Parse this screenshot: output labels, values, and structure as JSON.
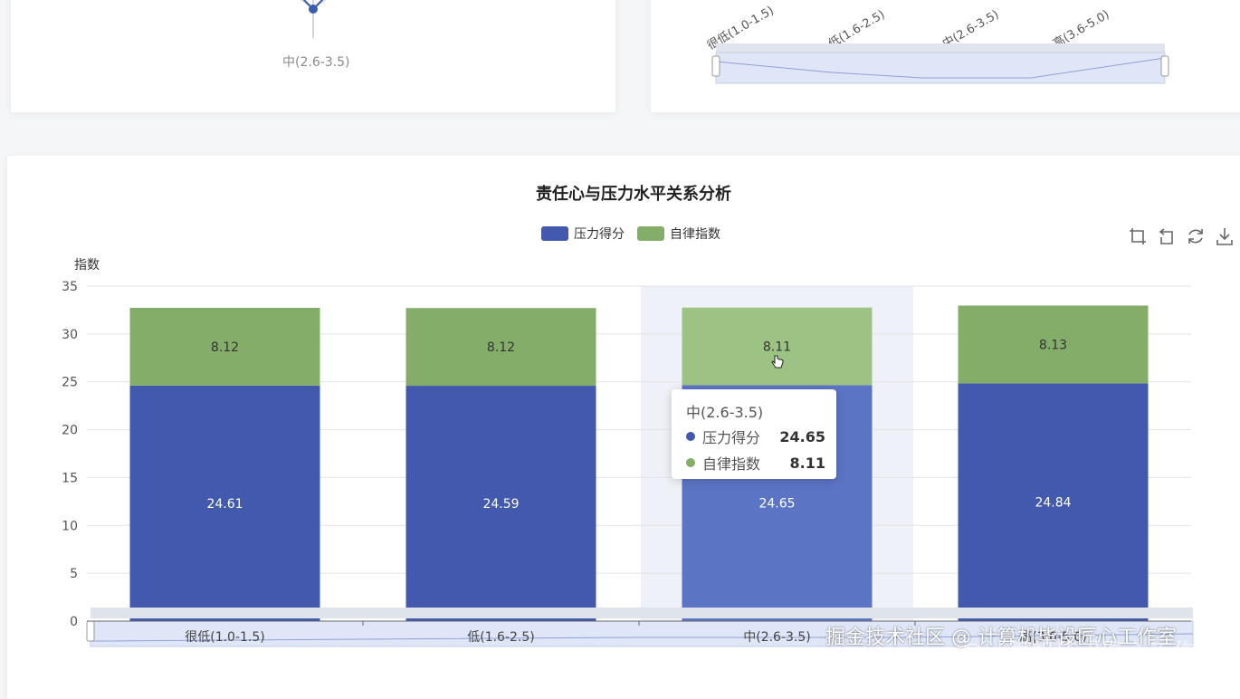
{
  "radar_card": {
    "axis_label": "中(2.6-3.5)"
  },
  "top_right_card": {
    "x_labels": [
      "很低(1.0-1.5)",
      "低(1.6-2.5)",
      "中(2.6-3.5)",
      "高(3.6-5.0)"
    ],
    "datazoom_handle_label": "≡"
  },
  "chart_data": {
    "type": "bar",
    "title": "责任心与压力水平关系分析",
    "ylabel": "指数",
    "xlabel": "",
    "ylim": [
      0,
      35
    ],
    "yticks": [
      0,
      5,
      10,
      15,
      20,
      25,
      30,
      35
    ],
    "stacked": true,
    "categories": [
      "很低(1.0-1.5)",
      "低(1.6-2.5)",
      "中(2.6-3.5)",
      "高(3.6-5.0)"
    ],
    "series": [
      {
        "name": "压力得分",
        "color": "#4259ad",
        "values": [
          24.61,
          24.59,
          24.65,
          24.84
        ]
      },
      {
        "name": "自律指数",
        "color": "#84ad69",
        "values": [
          8.12,
          8.12,
          8.11,
          8.13
        ]
      }
    ],
    "highlighted_category_index": 2,
    "legend_position": "top-center",
    "grid": true
  },
  "legend": {
    "items": [
      {
        "label": "压力得分",
        "color": "#4259ad"
      },
      {
        "label": "自律指数",
        "color": "#84ad69"
      }
    ]
  },
  "toolbox": {
    "icons": [
      "zoom-icon",
      "zoom-reset-icon",
      "restore-icon",
      "download-icon"
    ]
  },
  "tooltip": {
    "title": "中(2.6-3.5)",
    "rows": [
      {
        "name": "压力得分",
        "value": "24.65",
        "color": "#4259ad"
      },
      {
        "name": "自律指数",
        "value": "8.11",
        "color": "#84ad69"
      }
    ]
  },
  "watermark": {
    "line1": "掘金技术社区 @ 计算机毕设匠心工作室",
    "line2_brand": "CSDN",
    "line2": " @计算机毕设匠心工作室"
  }
}
